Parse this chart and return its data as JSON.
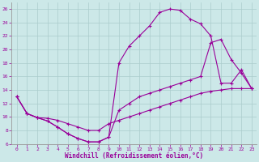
{
  "xlabel": "Windchill (Refroidissement éolien,°C)",
  "bg_color": "#cce8e8",
  "line_color": "#990099",
  "grid_color": "#aacccc",
  "xlim": [
    -0.5,
    23.5
  ],
  "ylim": [
    6,
    27
  ],
  "xticks": [
    0,
    1,
    2,
    3,
    4,
    5,
    6,
    7,
    8,
    9,
    10,
    11,
    12,
    13,
    14,
    15,
    16,
    17,
    18,
    19,
    20,
    21,
    22,
    23
  ],
  "yticks": [
    6,
    8,
    10,
    12,
    14,
    16,
    18,
    20,
    22,
    24,
    26
  ],
  "line1_x": [
    0,
    1,
    2,
    3,
    4,
    5,
    6,
    7,
    8,
    9,
    10,
    11,
    12,
    13,
    14,
    15,
    16,
    17,
    18,
    19,
    20,
    21,
    22,
    23
  ],
  "line1_y": [
    13.0,
    10.5,
    9.9,
    9.4,
    8.5,
    7.5,
    6.8,
    6.3,
    6.3,
    7.0,
    11.0,
    12.0,
    13.0,
    13.5,
    14.0,
    14.5,
    15.0,
    15.5,
    16.0,
    21.0,
    21.5,
    18.5,
    16.5,
    14.2
  ],
  "line2_x": [
    0,
    1,
    2,
    3,
    4,
    5,
    6,
    7,
    8,
    9,
    10,
    11,
    12,
    13,
    14,
    15,
    16,
    17,
    18,
    19,
    20,
    21,
    22,
    23
  ],
  "line2_y": [
    13.0,
    10.5,
    9.9,
    9.4,
    8.5,
    7.5,
    6.8,
    6.3,
    6.3,
    7.0,
    18.0,
    20.5,
    22.0,
    23.5,
    25.5,
    26.0,
    25.8,
    24.5,
    23.8,
    22.0,
    15.0,
    15.0,
    17.0,
    14.2
  ],
  "line3_x": [
    0,
    1,
    2,
    3,
    4,
    5,
    6,
    7,
    8,
    9,
    10,
    11,
    12,
    13,
    14,
    15,
    16,
    17,
    18,
    19,
    20,
    21,
    22,
    23
  ],
  "line3_y": [
    13.0,
    10.5,
    9.9,
    9.8,
    9.5,
    9.0,
    8.5,
    8.0,
    8.0,
    9.0,
    9.5,
    10.0,
    10.5,
    11.0,
    11.5,
    12.0,
    12.5,
    13.0,
    13.5,
    13.8,
    14.0,
    14.2,
    14.2,
    14.2
  ]
}
